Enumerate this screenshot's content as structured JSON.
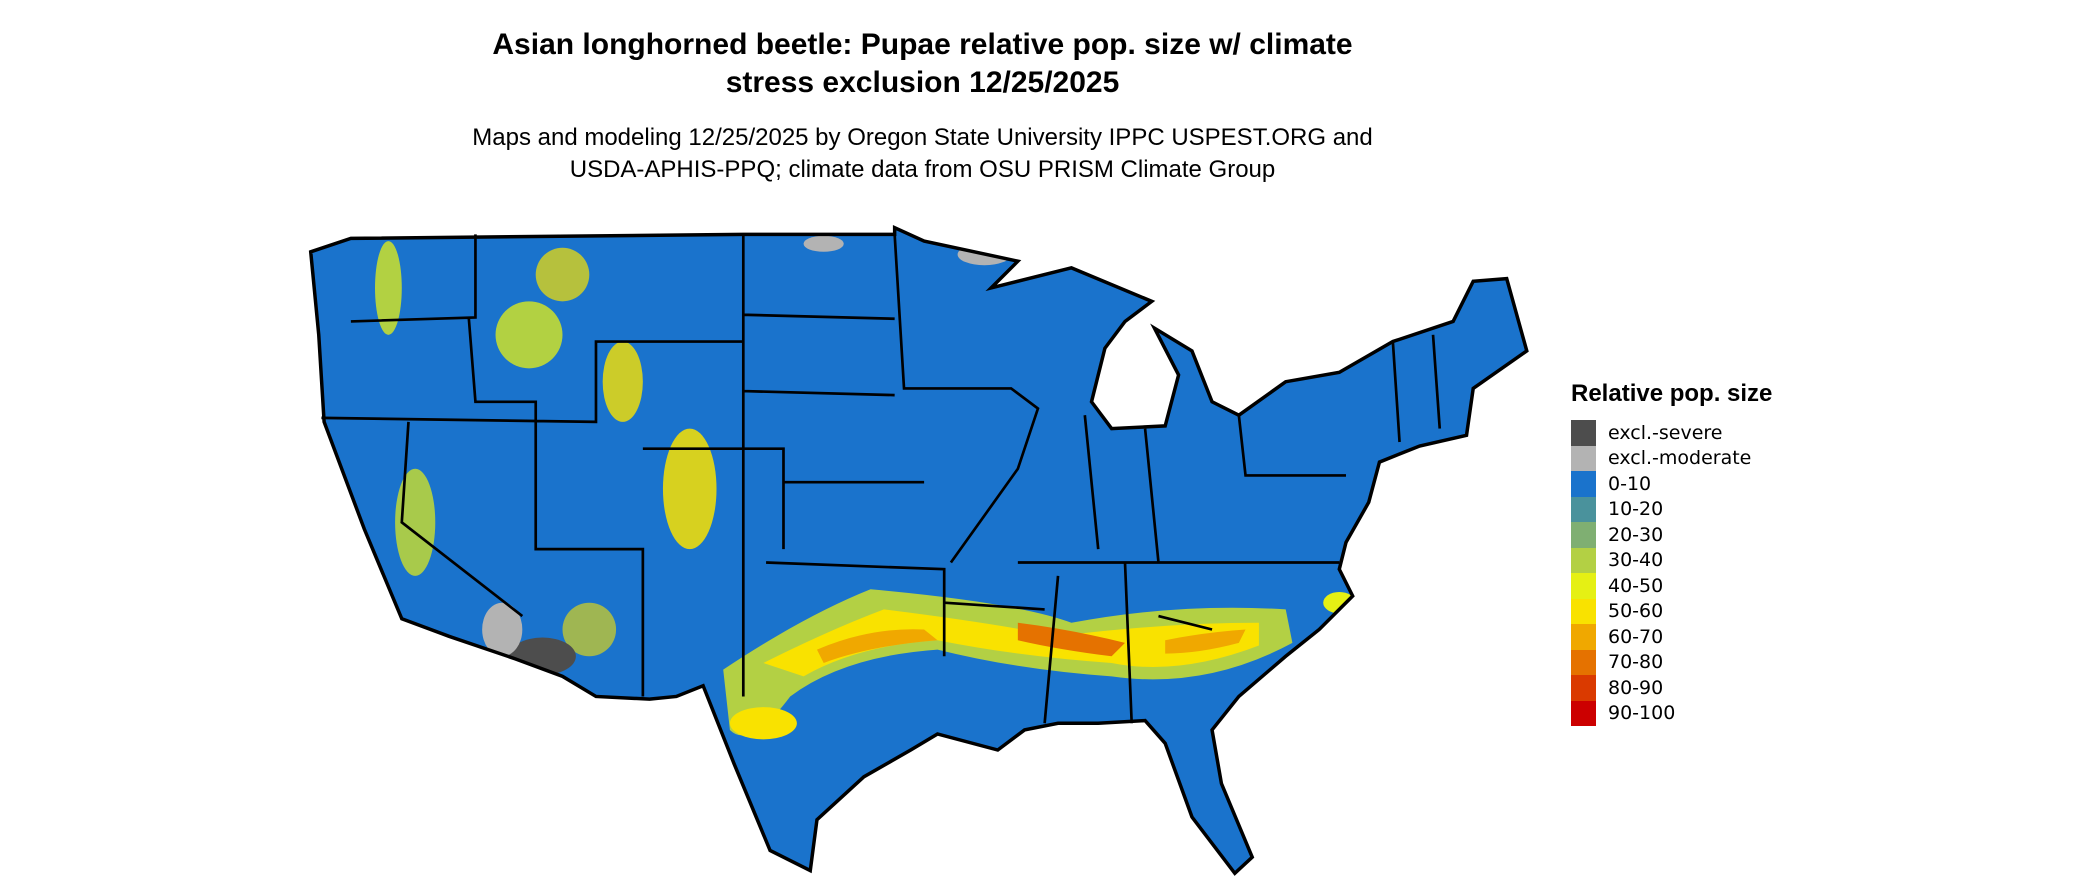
{
  "title_line1": "Asian longhorned beetle: Pupae relative pop. size w/ climate",
  "title_line2": "stress exclusion 12/25/2025",
  "subtitle_line1": "Maps and modeling 12/25/2025 by Oregon State University IPPC USPEST.ORG and",
  "subtitle_line2": "USDA-APHIS-PPQ; climate data from OSU PRISM Climate Group",
  "legend": {
    "title": "Relative pop. size",
    "items": [
      {
        "label": "excl.-severe",
        "color": "#4d4d4d"
      },
      {
        "label": "excl.-moderate",
        "color": "#b3b3b3"
      },
      {
        "label": "0-10",
        "color": "#1a73cc"
      },
      {
        "label": "10-20",
        "color": "#4a929c"
      },
      {
        "label": "20-30",
        "color": "#7faf72"
      },
      {
        "label": "30-40",
        "color": "#b3d044"
      },
      {
        "label": "40-50",
        "color": "#e5f014"
      },
      {
        "label": "50-60",
        "color": "#f9e200"
      },
      {
        "label": "60-70",
        "color": "#f0a800"
      },
      {
        "label": "70-80",
        "color": "#e57200"
      },
      {
        "label": "80-90",
        "color": "#da3a00"
      },
      {
        "label": "90-100",
        "color": "#cc0000"
      }
    ]
  }
}
